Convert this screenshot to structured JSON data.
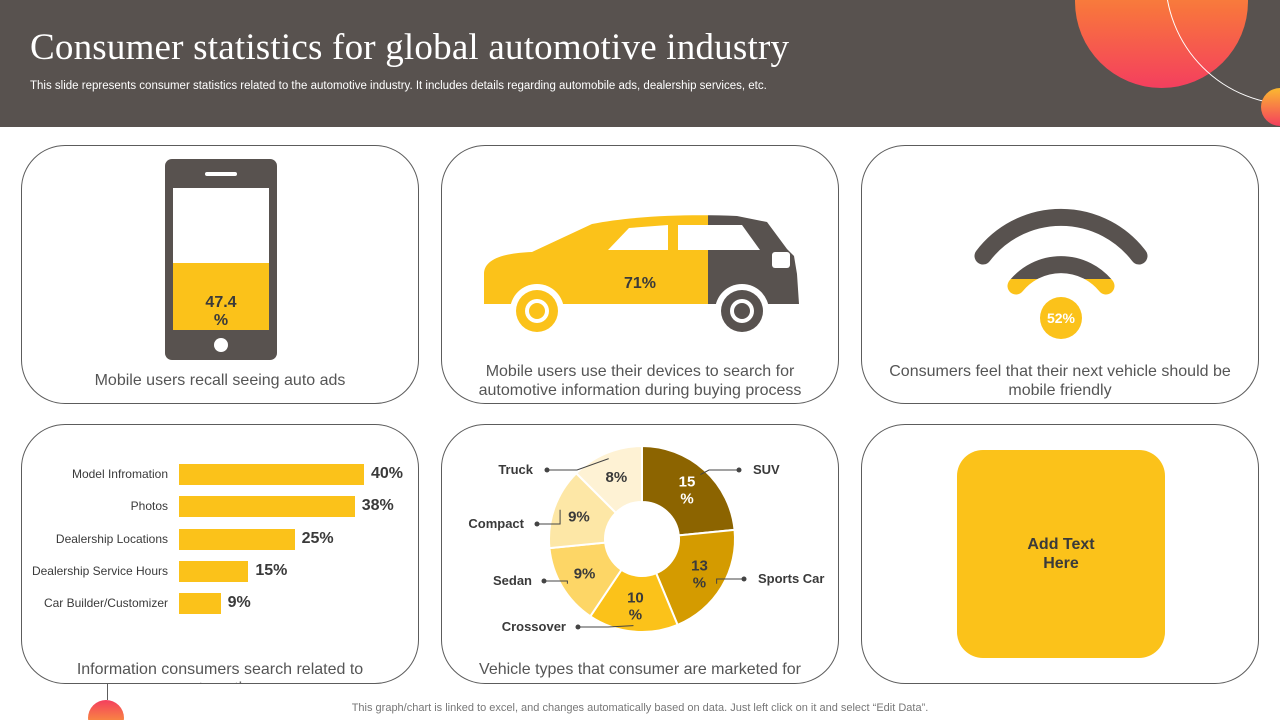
{
  "header": {
    "title": "Consumer statistics for global automotive industry",
    "subtitle": "This slide represents consumer statistics related to the automotive industry. It includes details regarding automobile ads, dealership services, etc."
  },
  "colors": {
    "header_bg": "#58524f",
    "accent": "#fbc21a",
    "dark": "#58524f"
  },
  "cards": {
    "mobile_ads": {
      "value_label": "47.4 %",
      "value": 47.4,
      "caption": "Mobile users recall seeing auto ads",
      "icon": "smartphone-icon"
    },
    "device_search": {
      "value_label": "71%",
      "value": 71,
      "caption": "Mobile users use their devices to search for automotive information during buying process",
      "icon": "car-icon"
    },
    "mobile_friendly": {
      "value_label": "52%",
      "value": 52,
      "caption": "Consumers feel that their next vehicle should be mobile friendly",
      "icon": "wifi-icon"
    },
    "search_info": {
      "caption": "Information consumers search related to automotive"
    },
    "vehicle_types": {
      "caption": "Vehicle types that consumer are marketed for"
    },
    "placeholder": {
      "text": "Add Text Here"
    }
  },
  "chart_data": [
    {
      "type": "bar",
      "orientation": "horizontal",
      "categories": [
        "Model Infromation",
        "Photos",
        "Dealership Locations",
        "Dealership Service Hours",
        "Car Builder/Customizer"
      ],
      "values": [
        40,
        38,
        25,
        15,
        9
      ],
      "value_labels": [
        "40%",
        "38%",
        "25%",
        "15%",
        "9%"
      ],
      "xlim": [
        0,
        40
      ]
    },
    {
      "type": "pie",
      "donut": true,
      "categories": [
        "SUV",
        "Sports Car",
        "Crossover",
        "Sedan",
        "Compact",
        "Truck"
      ],
      "values": [
        15,
        13,
        10,
        9,
        9,
        8
      ],
      "value_labels": [
        "15 %",
        "13 %",
        "10 %",
        "9%",
        "9%",
        "8%"
      ],
      "colors": [
        "#8c6400",
        "#d49b00",
        "#fbc21a",
        "#fdd666",
        "#fde7a6",
        "#fef2d4"
      ],
      "label_colors": [
        "#ffffff",
        "#3a3a3a",
        "#3a3a3a",
        "#3a3a3a",
        "#3a3a3a",
        "#3a3a3a"
      ]
    }
  ],
  "footer": {
    "note": "This graph/chart is linked to excel,  and changes automatically based on data. Just left click on it and select “Edit Data”."
  }
}
